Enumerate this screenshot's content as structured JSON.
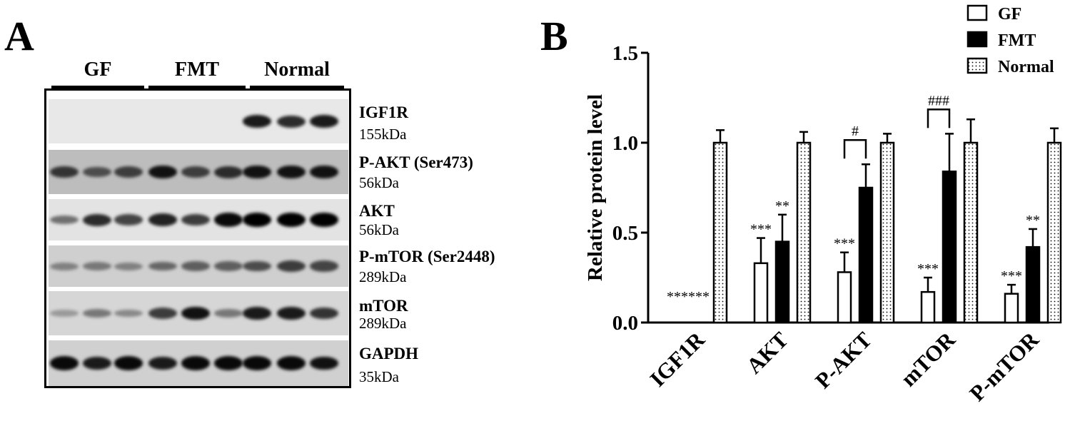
{
  "panel_a": {
    "letter": "A",
    "groups": [
      "GF",
      "FMT",
      "Normal"
    ],
    "strips": [
      {
        "name": "IGF1R",
        "size": "155kDa",
        "bg": "#e8e8e8",
        "bands": [
          0,
          0,
          0,
          0,
          0,
          0,
          0.85,
          0.75,
          0.85
        ]
      },
      {
        "name": "P-AKT (Ser473)",
        "size": "56kDa",
        "bg": "#bdbdbd",
        "bands": [
          0.7,
          0.55,
          0.65,
          0.9,
          0.65,
          0.75,
          0.9,
          0.9,
          0.9
        ]
      },
      {
        "name": "AKT",
        "size": "56kDa",
        "bg": "#e3e3e3",
        "bands": [
          0.35,
          0.75,
          0.6,
          0.8,
          0.65,
          0.95,
          1,
          1,
          1
        ]
      },
      {
        "name": "P-mTOR (Ser2448)",
        "size": "289kDa",
        "bg": "#cfcfcf",
        "bands": [
          0.25,
          0.3,
          0.25,
          0.4,
          0.45,
          0.45,
          0.55,
          0.65,
          0.6
        ]
      },
      {
        "name": "mTOR",
        "size": "289kDa",
        "bg": "#d6d6d6",
        "bands": [
          0.1,
          0.3,
          0.2,
          0.65,
          0.9,
          0.3,
          0.85,
          0.85,
          0.7
        ]
      },
      {
        "name": "GAPDH",
        "size": "35kDa",
        "bg": "#d0d0d0",
        "bands": [
          0.95,
          0.85,
          0.95,
          0.85,
          0.95,
          0.95,
          0.95,
          0.95,
          0.9
        ]
      }
    ]
  },
  "panel_b": {
    "letter": "B"
  },
  "chart_data": {
    "type": "bar",
    "ylabel": "Relative protein level",
    "ylim": [
      0,
      1.5
    ],
    "yticks": [
      "0.0",
      "0.5",
      "1.0",
      "1.5"
    ],
    "ytick_values": [
      0,
      0.5,
      1.0,
      1.5
    ],
    "categories": [
      "IGF1R",
      "AKT",
      "P-AKT",
      "mTOR",
      "P-mTOR"
    ],
    "series": [
      {
        "name": "GF",
        "values": [
          0,
          0.33,
          0.28,
          0.17,
          0.16
        ],
        "errors": [
          0,
          0.14,
          0.11,
          0.08,
          0.05
        ],
        "fill": "white"
      },
      {
        "name": "FMT",
        "values": [
          0,
          0.45,
          0.75,
          0.84,
          0.42
        ],
        "errors": [
          0,
          0.15,
          0.13,
          0.21,
          0.1
        ],
        "fill": "black"
      },
      {
        "name": "Normal",
        "values": [
          1.0,
          1.0,
          1.0,
          1.0,
          1.0
        ],
        "errors": [
          0.07,
          0.06,
          0.05,
          0.13,
          0.08
        ],
        "fill": "dots"
      }
    ],
    "significance": [
      {
        "category": "IGF1R",
        "series": "GF",
        "label": "***"
      },
      {
        "category": "IGF1R",
        "series": "FMT",
        "label": "***"
      },
      {
        "category": "AKT",
        "series": "GF",
        "label": "***"
      },
      {
        "category": "AKT",
        "series": "FMT",
        "label": "**"
      },
      {
        "category": "P-AKT",
        "series": "GF",
        "label": "***"
      },
      {
        "category": "mTOR",
        "series": "GF",
        "label": "***"
      },
      {
        "category": "P-mTOR",
        "series": "GF",
        "label": "***"
      },
      {
        "category": "P-mTOR",
        "series": "FMT",
        "label": "**"
      }
    ],
    "brackets": [
      {
        "category": "P-AKT",
        "label": "#"
      },
      {
        "category": "mTOR",
        "label": "###"
      }
    ],
    "legend_position": "top-right"
  }
}
